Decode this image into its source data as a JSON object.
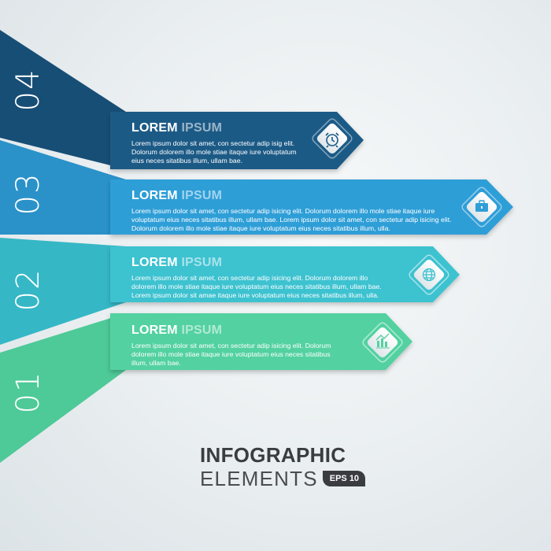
{
  "items": [
    {
      "number": "04",
      "title_part1": "LOREM",
      "title_part2": "IPSUM",
      "body": "Lorem ipsum dolor sit amet, con sectetur adip isig elit. Dolorum dolorem illo mole stiae itaque iure voluptatum eius neces sitatibus illum, ullam bae.",
      "icon": "alarm-clock-icon",
      "color": "#1b5a86"
    },
    {
      "number": "03",
      "title_part1": "LOREM",
      "title_part2": "IPSUM",
      "body": "Lorem ipsum dolor sit amet, con sectetur adip isicing elit. Dolorum dolorem illo mole stiae itaque iure voluptatum eius neces sitatibus illum, ullam bae. Lorem ipsum dolor sit amet, con sectetur adip isicing elit. Dolorum dolorem illo mole stiae itaque iure voluptatum eius neces sitatibus illum, ulla.",
      "icon": "briefcase-icon",
      "color": "#2f9ed7"
    },
    {
      "number": "02",
      "title_part1": "LOREM",
      "title_part2": "IPSUM",
      "body": "Lorem ipsum dolor sit amet, con sectetur adip isicing elit. Dolorum dolorem illo dolorem illo mole stiae itaque iure voluptatum eius neces sitatibus illum, ullam bae. Lorem ipsum dolor sit amae itaque iure voluptatum eius neces sitatibus illum, ulla.",
      "icon": "globe-icon",
      "color": "#3cc2d0"
    },
    {
      "number": "01",
      "title_part1": "LOREM",
      "title_part2": "IPSUM",
      "body": "Lorem ipsum dolor sit amet, con sectetur adip isicing elit. Dolorum dolorem illo mole stiae itaque iure voluptatum eius neces sitatibus illum, ullam bae.",
      "icon": "growth-chart-icon",
      "color": "#52d1a1"
    }
  ],
  "footer": {
    "line1": "INFOGRAPHIC",
    "line2": "ELEMENTS",
    "badge": "EPS 10"
  }
}
